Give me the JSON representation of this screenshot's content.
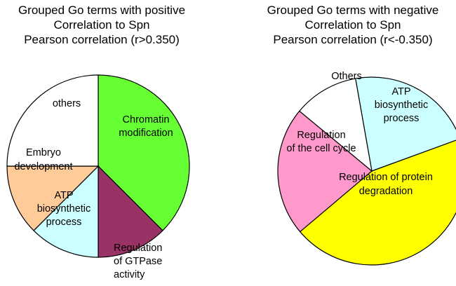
{
  "chart_data": [
    {
      "type": "pie",
      "title_lines": [
        "Grouped Go terms with positive",
        "Correlation to Spn",
        "Pearson correlation (r>0.350)"
      ],
      "slices": [
        {
          "id": "chromatin",
          "label_lines": [
            "Chromatin",
            "modification"
          ],
          "value": 37.5,
          "color": "#66ff33"
        },
        {
          "id": "gtpase",
          "label_lines": [
            "Regulation",
            "of GTPase",
            "activity"
          ],
          "value": 12.5,
          "color": "#993366"
        },
        {
          "id": "atp",
          "label_lines": [
            "ATP",
            "biosynthetic",
            "process"
          ],
          "value": 12.5,
          "color": "#ccffff"
        },
        {
          "id": "embryo",
          "label_lines": [
            "Embryo",
            "development"
          ],
          "value": 12.5,
          "color": "#ffcc99"
        },
        {
          "id": "others",
          "label_lines": [
            "others"
          ],
          "value": 25.0,
          "color": "#ffffff"
        }
      ]
    },
    {
      "type": "pie",
      "title_lines": [
        "Grouped Go terms with negative",
        "Correlation to Spn",
        "Pearson correlation (r<-0.350)"
      ],
      "slices": [
        {
          "id": "atp",
          "label_lines": [
            "ATP",
            "biosynthetic",
            "process"
          ],
          "value": 22.2,
          "color": "#ccffff"
        },
        {
          "id": "protein",
          "label_lines": [
            "Regulation of protein",
            "degradation"
          ],
          "value": 44.4,
          "color": "#ffff00"
        },
        {
          "id": "cellcycle",
          "label_lines": [
            "Regulation",
            "of the cell cycle"
          ],
          "value": 22.2,
          "color": "#ff99cc"
        },
        {
          "id": "others",
          "label_lines": [
            "Others"
          ],
          "value": 11.2,
          "color": "#ffffff"
        }
      ]
    }
  ]
}
